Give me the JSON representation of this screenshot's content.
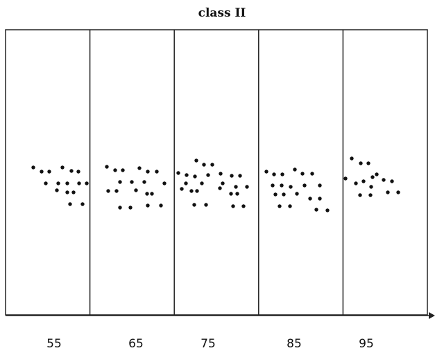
{
  "chart_data": {
    "type": "scatter",
    "title": "class II",
    "xlabel": "",
    "ylabel": "",
    "grid": false,
    "categories": [
      "55",
      "65",
      "75",
      "85",
      "95"
    ],
    "panels": [
      {
        "label": "55",
        "points": [
          [
            48,
            242
          ],
          [
            60,
            248
          ],
          [
            71,
            248
          ],
          [
            90,
            242
          ],
          [
            103,
            247
          ],
          [
            113,
            248
          ],
          [
            66,
            265
          ],
          [
            84,
            265
          ],
          [
            97,
            265
          ],
          [
            114,
            265
          ],
          [
            125,
            265
          ],
          [
            82,
            275
          ],
          [
            97,
            278
          ],
          [
            106,
            278
          ],
          [
            101,
            295
          ],
          [
            119,
            295
          ]
        ]
      },
      {
        "label": "65",
        "points": [
          [
            154,
            241
          ],
          [
            166,
            246
          ],
          [
            177,
            246
          ],
          [
            201,
            243
          ],
          [
            213,
            248
          ],
          [
            226,
            248
          ],
          [
            173,
            263
          ],
          [
            190,
            263
          ],
          [
            208,
            263
          ],
          [
            237,
            265
          ],
          [
            156,
            276
          ],
          [
            168,
            276
          ],
          [
            196,
            275
          ],
          [
            212,
            280
          ],
          [
            219,
            280
          ],
          [
            173,
            300
          ],
          [
            188,
            300
          ],
          [
            213,
            297
          ],
          [
            232,
            297
          ]
        ]
      },
      {
        "label": "75",
        "points": [
          [
            283,
            232
          ],
          [
            294,
            238
          ],
          [
            306,
            238
          ],
          [
            257,
            250
          ],
          [
            269,
            253
          ],
          [
            281,
            255
          ],
          [
            300,
            253
          ],
          [
            318,
            251
          ],
          [
            334,
            254
          ],
          [
            346,
            254
          ],
          [
            268,
            265
          ],
          [
            291,
            265
          ],
          [
            321,
            265
          ],
          [
            262,
            273
          ],
          [
            276,
            276
          ],
          [
            284,
            276
          ],
          [
            317,
            272
          ],
          [
            340,
            270
          ],
          [
            356,
            270
          ],
          [
            333,
            280
          ],
          [
            342,
            280
          ],
          [
            280,
            296
          ],
          [
            297,
            296
          ],
          [
            336,
            298
          ],
          [
            351,
            298
          ]
        ]
      },
      {
        "label": "85",
        "points": [
          [
            384,
            248
          ],
          [
            395,
            252
          ],
          [
            407,
            252
          ],
          [
            425,
            245
          ],
          [
            436,
            251
          ],
          [
            450,
            251
          ],
          [
            393,
            268
          ],
          [
            406,
            268
          ],
          [
            419,
            270
          ],
          [
            439,
            268
          ],
          [
            461,
            268
          ],
          [
            397,
            281
          ],
          [
            409,
            281
          ],
          [
            428,
            280
          ],
          [
            447,
            287
          ],
          [
            461,
            287
          ],
          [
            403,
            298
          ],
          [
            418,
            298
          ],
          [
            456,
            303
          ],
          [
            472,
            304
          ]
        ]
      },
      {
        "label": "95",
        "points": [
          [
            507,
            229
          ],
          [
            520,
            236
          ],
          [
            531,
            236
          ],
          [
            498,
            258
          ],
          [
            513,
            265
          ],
          [
            524,
            262
          ],
          [
            537,
            256
          ],
          [
            543,
            252
          ],
          [
            553,
            260
          ],
          [
            565,
            262
          ],
          [
            535,
            270
          ],
          [
            519,
            282
          ],
          [
            534,
            282
          ],
          [
            559,
            278
          ],
          [
            574,
            278
          ]
        ]
      }
    ]
  }
}
